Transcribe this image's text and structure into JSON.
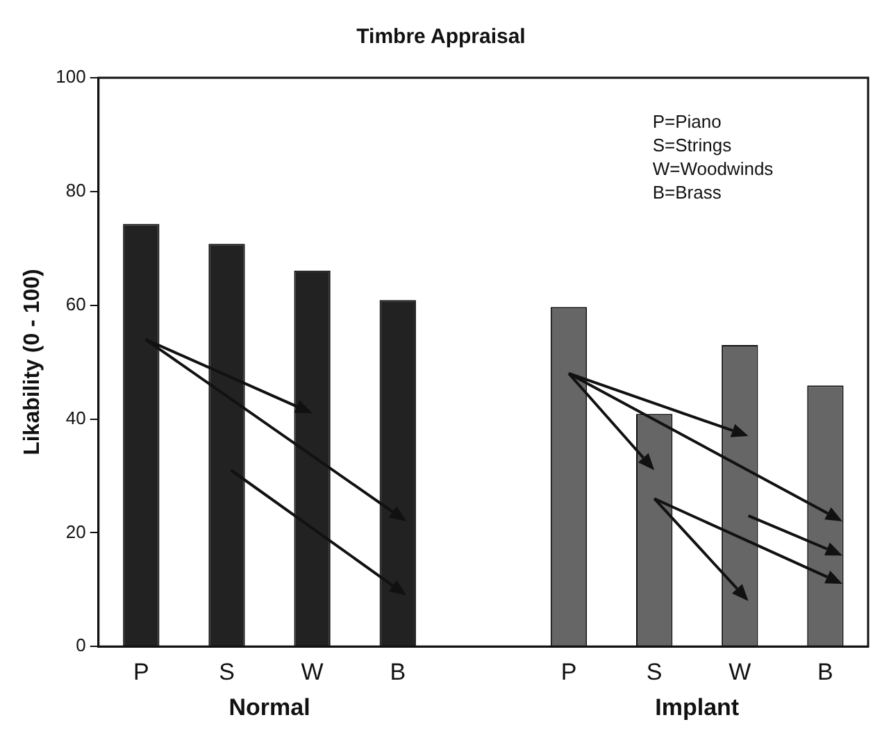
{
  "chart_data": {
    "type": "bar",
    "title": "Timbre Appraisal",
    "ylabel": "Likability (0 - 100)",
    "categories": [
      "P",
      "S",
      "W",
      "B",
      null,
      "P",
      "S",
      "W",
      "B"
    ],
    "values": [
      74.3,
      70.8,
      66.1,
      60.9,
      null,
      59.7,
      40.9,
      53.0,
      45.9
    ],
    "colors": [
      "#222222",
      "#222222",
      "#222222",
      "#222222",
      "#222222",
      "#666666",
      "#666666",
      "#666666",
      "#666666"
    ],
    "ylim": [
      0,
      100
    ],
    "yticks": [
      0,
      20,
      40,
      60,
      80,
      100
    ],
    "annotations": [
      "Normal",
      "Implant",
      "P=Piano",
      "S=Strings",
      "W=Woodwinds",
      "B=Brass"
    ]
  }
}
